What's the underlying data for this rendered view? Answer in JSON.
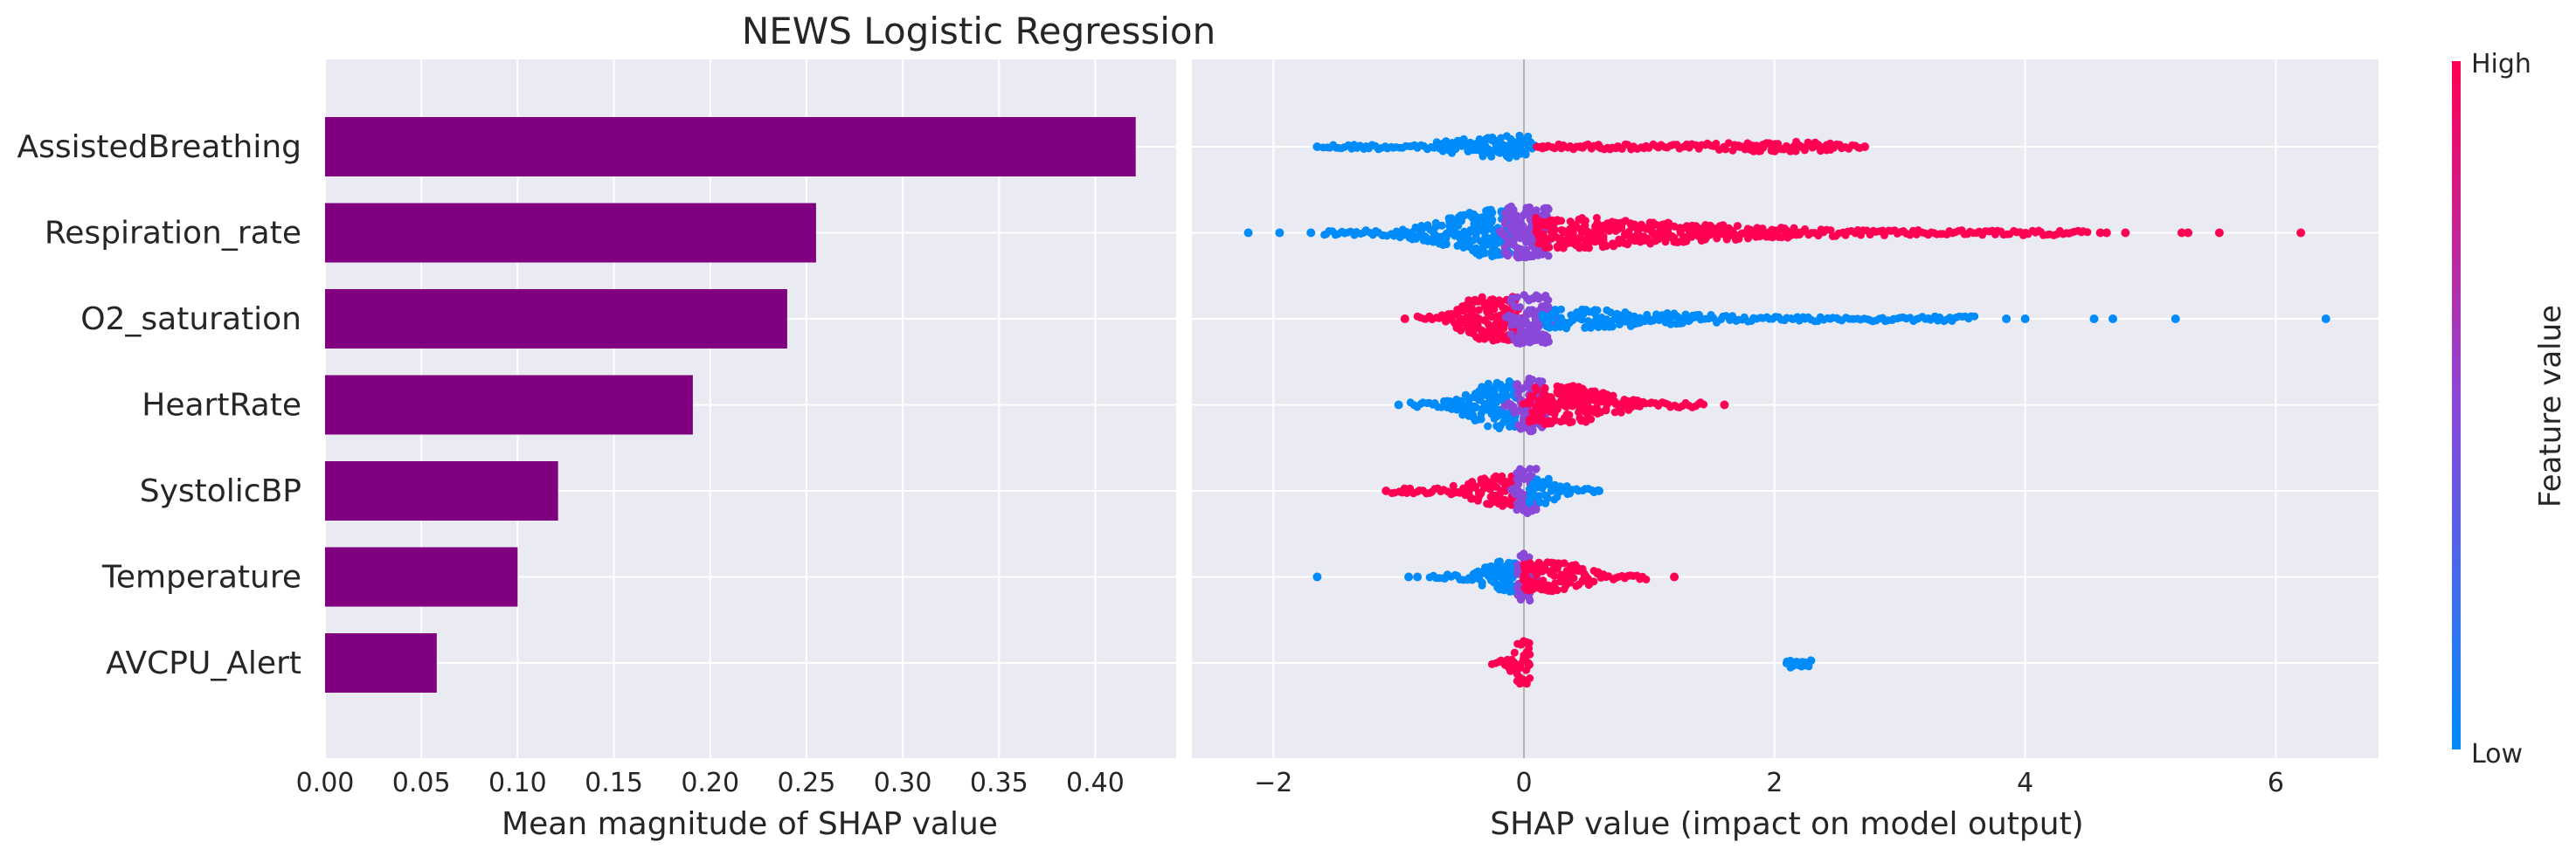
{
  "title": "NEWS Logistic Regression",
  "colors": {
    "panel_bg": "#EAEAF2",
    "grid": "#FFFFFF",
    "bar": "#800080",
    "low": "#008BFB",
    "mid": "#8A48D9",
    "high": "#FF0052",
    "zero_line": "#999999",
    "text": "#262626"
  },
  "chart_data": [
    {
      "type": "bar",
      "title": "NEWS Logistic Regression",
      "xlabel": "Mean magnitude of SHAP value",
      "ylabel": "",
      "categories": [
        "AssistedBreathing",
        "Respiration_rate",
        "O2_saturation",
        "HeartRate",
        "SystolicBP",
        "Temperature",
        "AVCPU_Alert"
      ],
      "values": [
        0.421,
        0.255,
        0.24,
        0.191,
        0.121,
        0.1,
        0.058
      ],
      "xlim": [
        0,
        0.442
      ],
      "ticks": [
        0.0,
        0.05,
        0.1,
        0.15,
        0.2,
        0.25,
        0.3,
        0.35,
        0.4
      ],
      "tick_labels": [
        "0.00",
        "0.05",
        "0.10",
        "0.15",
        "0.20",
        "0.25",
        "0.30",
        "0.35",
        "0.40"
      ],
      "grid": true,
      "orientation": "horizontal"
    },
    {
      "type": "scatter",
      "subtype": "beeswarm",
      "xlabel": "SHAP value (impact on model output)",
      "xlim": [
        -2.65,
        6.82
      ],
      "ticks": [
        -2,
        0,
        2,
        4,
        6
      ],
      "tick_labels": [
        "−2",
        "0",
        "2",
        "4",
        "6"
      ],
      "grid": true,
      "colorbar": {
        "label": "Feature value",
        "high_label": "High",
        "low_label": "Low"
      },
      "series": [
        {
          "name": "AssistedBreathing",
          "segments": [
            {
              "from": -1.6,
              "to": 0.1,
              "core": [
                -0.25,
                0.05
              ],
              "spread": 0.42,
              "color": "low"
            },
            {
              "from": 0.1,
              "to": 2.7,
              "core": [
                1.75,
                2.45
              ],
              "spread": 0.18,
              "color": "high"
            }
          ],
          "outliers": [
            {
              "x": -1.65,
              "color": "low"
            },
            {
              "x": 0.15,
              "color": "high"
            },
            {
              "x": 0.45,
              "color": "high"
            },
            {
              "x": 0.6,
              "color": "high"
            },
            {
              "x": 0.75,
              "color": "high"
            },
            {
              "x": 2.72,
              "color": "high"
            }
          ]
        },
        {
          "name": "Respiration_rate",
          "segments": [
            {
              "from": -1.6,
              "to": -0.1,
              "core": [
                -0.35,
                -0.05
              ],
              "spread": 0.85,
              "color": "low"
            },
            {
              "from": -0.2,
              "to": 0.2,
              "core": [
                -0.15,
                0.2
              ],
              "spread": 0.95,
              "color": "mid"
            },
            {
              "from": 0.1,
              "to": 4.5,
              "core": [
                0.1,
                0.55
              ],
              "spread": 0.55,
              "color": "high"
            }
          ],
          "outliers": [
            {
              "x": -2.2,
              "color": "low"
            },
            {
              "x": -1.95,
              "color": "low"
            },
            {
              "x": -1.7,
              "color": "low"
            },
            {
              "x": 4.6,
              "color": "high"
            },
            {
              "x": 4.65,
              "color": "high"
            },
            {
              "x": 4.8,
              "color": "high"
            },
            {
              "x": 5.25,
              "color": "high"
            },
            {
              "x": 5.3,
              "color": "high"
            },
            {
              "x": 5.55,
              "color": "high"
            },
            {
              "x": 6.2,
              "color": "high"
            }
          ]
        },
        {
          "name": "O2_saturation",
          "segments": [
            {
              "from": -0.85,
              "to": 0.0,
              "core": [
                -0.4,
                -0.05
              ],
              "spread": 0.8,
              "color": "high"
            },
            {
              "from": -0.15,
              "to": 0.25,
              "core": [
                -0.1,
                0.2
              ],
              "spread": 0.9,
              "color": "mid"
            },
            {
              "from": 0.15,
              "to": 3.6,
              "core": [
                0.15,
                0.5
              ],
              "spread": 0.35,
              "color": "low"
            }
          ],
          "outliers": [
            {
              "x": -0.95,
              "color": "high"
            },
            {
              "x": 3.85,
              "color": "low"
            },
            {
              "x": 4.0,
              "color": "low"
            },
            {
              "x": 4.55,
              "color": "low"
            },
            {
              "x": 4.7,
              "color": "low"
            },
            {
              "x": 5.2,
              "color": "low"
            },
            {
              "x": 6.4,
              "color": "low"
            }
          ]
        },
        {
          "name": "HeartRate",
          "segments": [
            {
              "from": -0.9,
              "to": -0.05,
              "core": [
                -0.3,
                -0.05
              ],
              "spread": 0.85,
              "color": "low"
            },
            {
              "from": -0.15,
              "to": 0.2,
              "core": [
                -0.05,
                0.15
              ],
              "spread": 0.95,
              "color": "mid"
            },
            {
              "from": 0.0,
              "to": 1.45,
              "core": [
                0.05,
                0.45
              ],
              "spread": 0.7,
              "color": "high"
            }
          ],
          "outliers": [
            {
              "x": -1.0,
              "color": "low"
            },
            {
              "x": 1.6,
              "color": "high"
            }
          ]
        },
        {
          "name": "SystolicBP",
          "segments": [
            {
              "from": -1.05,
              "to": -0.05,
              "core": [
                -0.25,
                0.0
              ],
              "spread": 0.55,
              "color": "high"
            },
            {
              "from": -0.1,
              "to": 0.1,
              "core": [
                -0.05,
                0.1
              ],
              "spread": 0.8,
              "color": "mid"
            },
            {
              "from": 0.05,
              "to": 0.6,
              "core": [
                0.05,
                0.2
              ],
              "spread": 0.45,
              "color": "low"
            }
          ],
          "outliers": [
            {
              "x": -1.1,
              "color": "high"
            },
            {
              "x": 0.6,
              "color": "low"
            }
          ]
        },
        {
          "name": "Temperature",
          "segments": [
            {
              "from": -0.75,
              "to": -0.05,
              "core": [
                -0.2,
                0.0
              ],
              "spread": 0.6,
              "color": "low"
            },
            {
              "from": -0.05,
              "to": 0.1,
              "core": [
                -0.05,
                0.05
              ],
              "spread": 0.85,
              "color": "mid"
            },
            {
              "from": 0.0,
              "to": 1.0,
              "core": [
                0.0,
                0.35
              ],
              "spread": 0.55,
              "color": "high"
            }
          ],
          "outliers": [
            {
              "x": -1.65,
              "color": "low"
            },
            {
              "x": -0.92,
              "color": "low"
            },
            {
              "x": -0.85,
              "color": "low"
            },
            {
              "x": 1.2,
              "color": "high"
            }
          ]
        },
        {
          "name": "AVCPU_Alert",
          "segments": [
            {
              "from": -0.25,
              "to": 0.05,
              "core": [
                -0.05,
                0.05
              ],
              "spread": 0.8,
              "color": "high"
            },
            {
              "from": 2.1,
              "to": 2.3,
              "core": [
                2.1,
                2.3
              ],
              "spread": 0.18,
              "color": "low"
            }
          ],
          "outliers": []
        }
      ]
    }
  ]
}
